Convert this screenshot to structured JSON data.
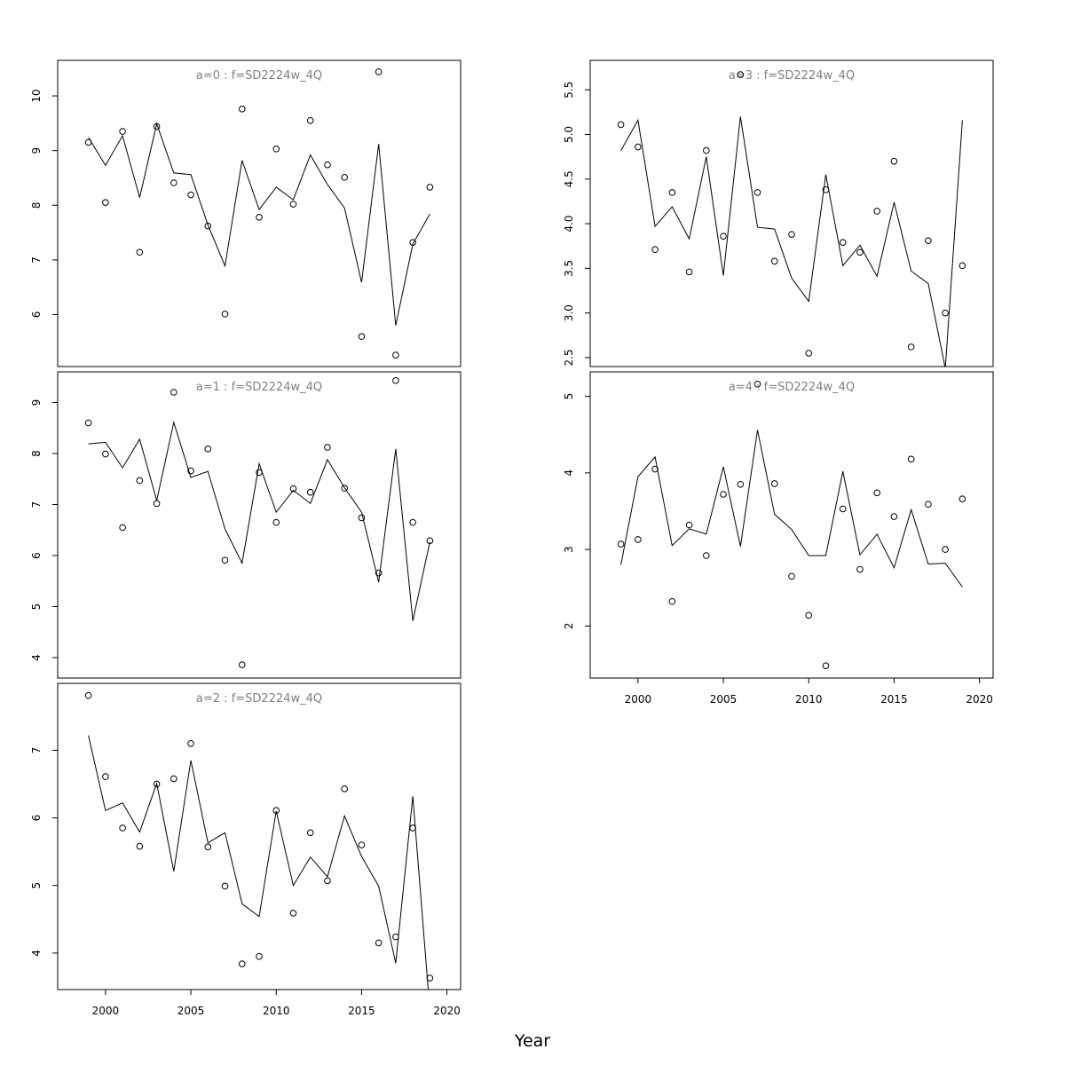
{
  "xlabel": "Year",
  "chart_data": [
    {
      "type": "line",
      "title": "a=0  :  f=SD2224w_4Q",
      "x": [
        1999,
        2000,
        2001,
        2002,
        2003,
        2004,
        2005,
        2006,
        2007,
        2008,
        2009,
        2010,
        2011,
        2012,
        2013,
        2014,
        2015,
        2016,
        2017,
        2018,
        2019
      ],
      "series": [
        {
          "kind": "line",
          "values": [
            9.24,
            8.73,
            9.27,
            8.14,
            9.49,
            8.59,
            8.56,
            7.64,
            6.89,
            8.82,
            7.92,
            8.33,
            8.1,
            8.92,
            8.38,
            7.95,
            6.59,
            9.12,
            5.8,
            7.29,
            7.84
          ]
        },
        {
          "kind": "points",
          "values": [
            9.15,
            8.05,
            9.35,
            7.14,
            9.44,
            8.41,
            8.19,
            7.62,
            6.01,
            9.76,
            7.78,
            9.03,
            8.02,
            9.55,
            8.74,
            8.51,
            5.6,
            10.44,
            5.26,
            7.32,
            8.33
          ]
        }
      ],
      "xlim": [
        1997.2,
        2020.8
      ],
      "ylim": [
        5.05,
        10.65
      ],
      "xticks": [
        2000,
        2005,
        2010,
        2015,
        2020
      ],
      "yticks": [
        "6",
        "7",
        "8",
        "9",
        "10"
      ],
      "show_xaxis": false
    },
    {
      "type": "line",
      "title": "a=3  :  f=SD2224w_4Q",
      "x": [
        1999,
        2000,
        2001,
        2002,
        2003,
        2004,
        2005,
        2006,
        2007,
        2008,
        2009,
        2010,
        2011,
        2012,
        2013,
        2014,
        2015,
        2016,
        2017,
        2018,
        2019
      ],
      "series": [
        {
          "kind": "line",
          "values": [
            4.82,
            5.16,
            3.97,
            4.19,
            3.83,
            4.75,
            3.42,
            5.2,
            3.96,
            3.94,
            3.39,
            3.13,
            4.55,
            3.53,
            3.76,
            3.41,
            4.24,
            3.47,
            3.33,
            2.38,
            5.16
          ]
        },
        {
          "kind": "points",
          "values": [
            5.11,
            4.86,
            3.71,
            4.35,
            3.46,
            4.82,
            3.86,
            5.67,
            4.35,
            3.58,
            3.88,
            2.55,
            4.38,
            3.79,
            3.68,
            4.14,
            4.7,
            2.62,
            3.81,
            3.0,
            3.53
          ]
        }
      ],
      "xlim": [
        1997.2,
        2020.8
      ],
      "ylim": [
        2.4,
        5.83
      ],
      "xticks": [
        2000,
        2005,
        2010,
        2015,
        2020
      ],
      "yticks": [
        "2.5",
        "3.0",
        "3.5",
        "4.0",
        "4.5",
        "5.0",
        "5.5"
      ],
      "show_xaxis": false
    },
    {
      "type": "line",
      "title": "a=1  :  f=SD2224w_4Q",
      "x": [
        1999,
        2000,
        2001,
        2002,
        2003,
        2004,
        2005,
        2006,
        2007,
        2008,
        2009,
        2010,
        2011,
        2012,
        2013,
        2014,
        2015,
        2016,
        2017,
        2018,
        2019
      ],
      "series": [
        {
          "kind": "line",
          "values": [
            8.19,
            8.22,
            7.72,
            8.28,
            7.08,
            8.61,
            7.53,
            7.65,
            6.52,
            5.85,
            7.8,
            6.85,
            7.28,
            7.02,
            7.88,
            7.33,
            6.85,
            5.48,
            8.09,
            4.72,
            6.27
          ]
        },
        {
          "kind": "points",
          "values": [
            8.6,
            7.99,
            6.55,
            7.47,
            7.02,
            9.2,
            7.66,
            8.09,
            5.91,
            3.86,
            7.63,
            6.65,
            7.31,
            7.24,
            8.12,
            7.32,
            6.74,
            5.66,
            9.43,
            6.65,
            6.29
          ]
        }
      ],
      "xlim": [
        1997.2,
        2020.8
      ],
      "ylim": [
        3.6,
        9.6
      ],
      "xticks": [
        2000,
        2005,
        2010,
        2015,
        2020
      ],
      "yticks": [
        "4",
        "5",
        "6",
        "7",
        "8",
        "9"
      ],
      "show_xaxis": false
    },
    {
      "type": "line",
      "title": "a=4  :  f=SD2224w_4Q",
      "x": [
        1999,
        2000,
        2001,
        2002,
        2003,
        2004,
        2005,
        2006,
        2007,
        2008,
        2009,
        2010,
        2011,
        2012,
        2013,
        2014,
        2015,
        2016,
        2017,
        2018,
        2019
      ],
      "series": [
        {
          "kind": "line",
          "values": [
            2.8,
            3.95,
            4.21,
            3.05,
            3.27,
            3.2,
            4.08,
            3.04,
            4.56,
            3.46,
            3.26,
            2.92,
            2.92,
            4.02,
            2.93,
            3.2,
            2.76,
            3.52,
            2.81,
            2.82,
            2.51
          ]
        },
        {
          "kind": "points",
          "values": [
            3.07,
            3.13,
            4.05,
            2.32,
            3.32,
            2.92,
            3.72,
            3.85,
            5.16,
            3.86,
            2.65,
            2.14,
            1.48,
            3.53,
            2.74,
            3.74,
            3.43,
            4.18,
            3.59,
            3.0,
            3.66
          ]
        }
      ],
      "xlim": [
        1997.2,
        2020.8
      ],
      "ylim": [
        1.32,
        5.32
      ],
      "xticks": [
        2000,
        2005,
        2010,
        2015,
        2020
      ],
      "yticks": [
        "2",
        "3",
        "4",
        "5"
      ],
      "show_xaxis": true
    },
    {
      "type": "line",
      "title": "a=2  :  f=SD2224w_4Q",
      "x": [
        1999,
        2000,
        2001,
        2002,
        2003,
        2004,
        2005,
        2006,
        2007,
        2008,
        2009,
        2010,
        2011,
        2012,
        2013,
        2014,
        2015,
        2016,
        2017,
        2018,
        2019
      ],
      "series": [
        {
          "kind": "line",
          "values": [
            7.22,
            6.11,
            6.22,
            5.79,
            6.51,
            5.21,
            6.85,
            5.63,
            5.78,
            4.73,
            4.54,
            6.1,
            5.0,
            5.42,
            5.13,
            6.03,
            5.43,
            4.99,
            3.85,
            6.32,
            3.15
          ]
        },
        {
          "kind": "points",
          "values": [
            7.81,
            6.61,
            5.85,
            5.58,
            6.5,
            6.58,
            7.1,
            5.57,
            4.99,
            3.84,
            3.95,
            6.11,
            4.59,
            5.78,
            5.07,
            6.43,
            5.6,
            4.15,
            4.24,
            5.85,
            3.63
          ]
        }
      ],
      "xlim": [
        1997.2,
        2020.8
      ],
      "ylim": [
        3.46,
        7.99
      ],
      "xticks": [
        2000,
        2005,
        2010,
        2015,
        2020
      ],
      "yticks": [
        "4",
        "5",
        "6",
        "7"
      ],
      "show_xaxis": true
    }
  ]
}
